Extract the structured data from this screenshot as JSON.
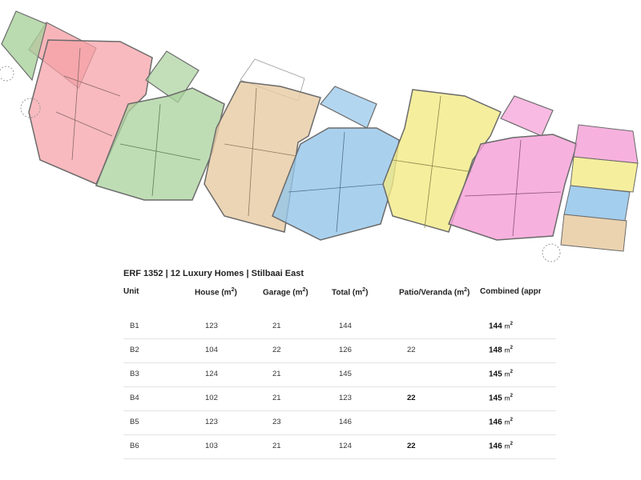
{
  "plan": {
    "units": [
      {
        "code": "B1",
        "color": "#f5a3a8"
      },
      {
        "code": "B2",
        "color": "#a9d19c"
      },
      {
        "code": "B3",
        "color": "#e7cba2"
      },
      {
        "code": "B4",
        "color": "#93c5ea"
      },
      {
        "code": "B5",
        "color": "#f3ea84"
      },
      {
        "code": "B6",
        "color": "#f59dd6"
      }
    ],
    "wall_color": "#6b6b6b"
  },
  "table": {
    "title": "ERF 1352 | 12 Luxury Homes | Stilbaai East",
    "headers": {
      "unit": "Unit",
      "house": "House (m",
      "garage": "Garage (m",
      "total": "Total (m",
      "patio": "Patio/Veranda (m",
      "combined": "Combined (appro",
      "sup": "2",
      "close": ")"
    },
    "m2_unit": "m",
    "m2_sup": "2",
    "rows": [
      {
        "unit": "B1",
        "house": "123",
        "garage": "21",
        "total": "144",
        "patio": "",
        "combined": "144"
      },
      {
        "unit": "B2",
        "house": "104",
        "garage": "22",
        "total": "126",
        "patio": "22",
        "combined": "148"
      },
      {
        "unit": "B3",
        "house": "124",
        "garage": "21",
        "total": "145",
        "patio": "",
        "combined": "145"
      },
      {
        "unit": "B4",
        "house": "102",
        "garage": "21",
        "total": "123",
        "patio": "22",
        "combined": "145"
      },
      {
        "unit": "B5",
        "house": "123",
        "garage": "23",
        "total": "146",
        "patio": "",
        "combined": "146"
      },
      {
        "unit": "B6",
        "house": "103",
        "garage": "21",
        "total": "124",
        "patio": "22",
        "combined": "146"
      }
    ]
  }
}
